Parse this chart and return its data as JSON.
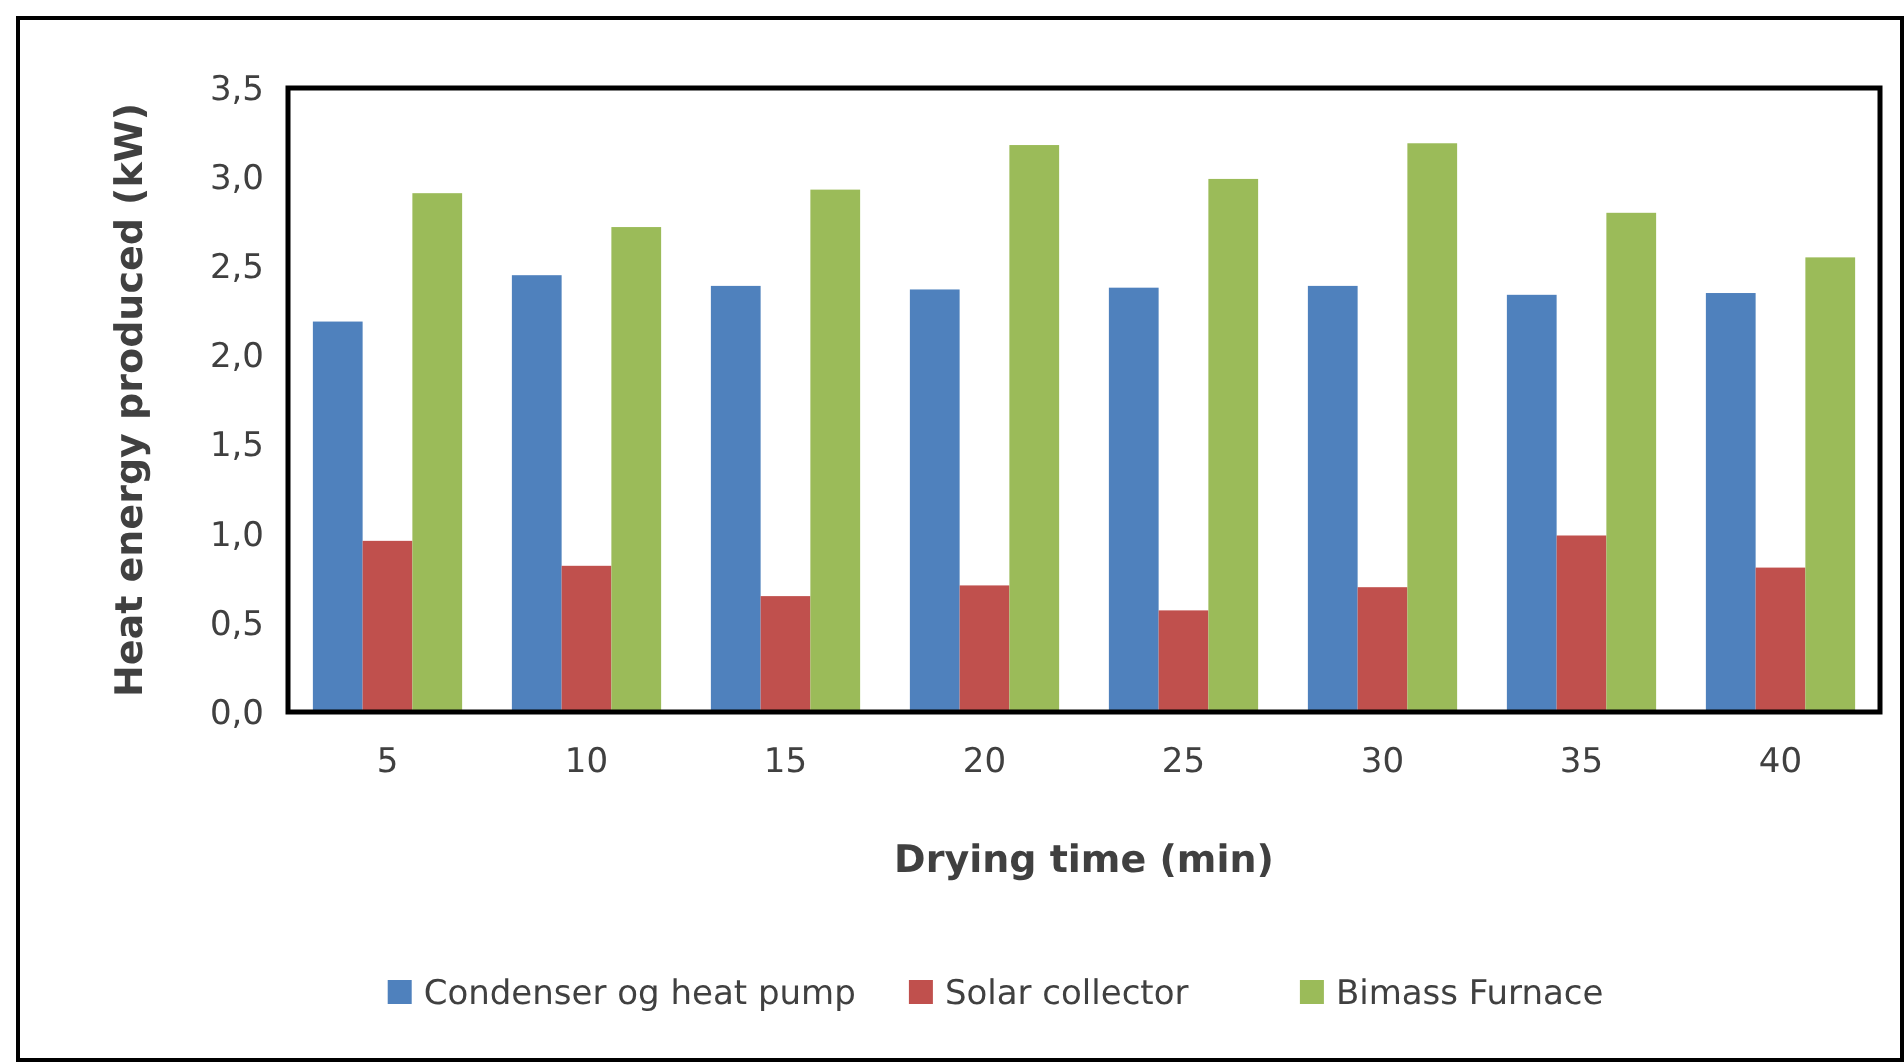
{
  "chart_data": {
    "type": "bar",
    "xlabel": "Drying time (min)",
    "ylabel": "Heat energy produced (kW)",
    "categories": [
      "5",
      "10",
      "15",
      "20",
      "25",
      "30",
      "35",
      "40"
    ],
    "series": [
      {
        "name": "Condenser og heat pump",
        "color": "#4f81bd",
        "values": [
          2.19,
          2.45,
          2.39,
          2.37,
          2.38,
          2.39,
          2.34,
          2.35
        ]
      },
      {
        "name": "Solar collector",
        "color": "#c0504d",
        "values": [
          0.96,
          0.82,
          0.65,
          0.71,
          0.57,
          0.7,
          0.99,
          0.81
        ]
      },
      {
        "name": "Bimass Furnace",
        "color": "#9bbb59",
        "values": [
          2.91,
          2.72,
          2.93,
          3.18,
          2.99,
          3.19,
          2.8,
          2.55
        ]
      }
    ],
    "ylim": [
      0,
      3.5
    ],
    "yticks": [
      {
        "value": 0,
        "label": "0,0"
      },
      {
        "value": 0.5,
        "label": "0,5"
      },
      {
        "value": 1,
        "label": "1,0"
      },
      {
        "value": 1.5,
        "label": "1,5"
      },
      {
        "value": 2,
        "label": "2,0"
      },
      {
        "value": 2.5,
        "label": "2,5"
      },
      {
        "value": 3,
        "label": "3,0"
      },
      {
        "value": 3.5,
        "label": "3,5"
      }
    ],
    "grid": false,
    "legend": "bottom"
  }
}
